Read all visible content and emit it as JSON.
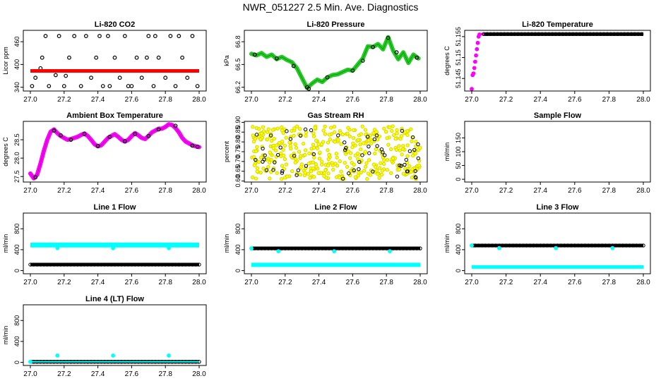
{
  "page_title": "NWR_051227  2.5 Min. Ave. Diagnostics",
  "colors": {
    "black": "#000000",
    "red": "#ff0000",
    "green": "#22cc22",
    "magenta": "#ff00ff",
    "yellow": "#ffff00",
    "cyan": "#00ffff"
  },
  "chart_data": [
    {
      "id": "co2",
      "title": "Li-820 CO2",
      "type": "scatter",
      "ylabel": "Licor ppm",
      "xlim": [
        27.0,
        28.0
      ],
      "xticks": [
        27.0,
        27.2,
        27.4,
        27.6,
        27.8,
        28.0
      ],
      "ylim": [
        330,
        490
      ],
      "yticks": [
        340,
        400,
        460
      ],
      "series": [
        {
          "name": "black",
          "color": "black",
          "mode": "scatter",
          "x": [
            27.01,
            27.03,
            27.07,
            27.09,
            27.15,
            27.17,
            27.2,
            27.23,
            27.3,
            27.33,
            27.36,
            27.39,
            27.43,
            27.46,
            27.5,
            27.53,
            27.56,
            27.6,
            27.63,
            27.66,
            27.7,
            27.73,
            27.76,
            27.8,
            27.83,
            27.86,
            27.9,
            27.93,
            27.96,
            27.99,
            27.11,
            27.26,
            27.41,
            27.58,
            27.74,
            27.88,
            27.06,
            27.21,
            27.47,
            27.69
          ],
          "y": [
            343,
            365,
            418,
            475,
            372,
            475,
            343,
            418,
            343,
            475,
            365,
            418,
            343,
            475,
            418,
            365,
            475,
            343,
            418,
            365,
            475,
            343,
            418,
            365,
            475,
            343,
            418,
            365,
            475,
            343,
            343,
            475,
            475,
            343,
            475,
            475,
            390,
            370,
            343,
            418
          ]
        },
        {
          "name": "red",
          "color": "red",
          "mode": "band",
          "x": [
            27.0,
            28.0
          ],
          "y": [
            383,
            383
          ],
          "width": 5
        }
      ]
    },
    {
      "id": "pressure",
      "title": "Li-820 Pressure",
      "type": "line",
      "ylabel": "kPa",
      "xlim": [
        27.0,
        28.0
      ],
      "xticks": [
        27.0,
        27.2,
        27.4,
        27.6,
        27.8,
        28.0
      ],
      "ylim": [
        66.15,
        66.95
      ],
      "yticks": [
        66.2,
        66.5,
        66.8
      ],
      "ytick_labels": [
        "66.2",
        "66.5",
        "66.8"
      ],
      "series": [
        {
          "name": "green",
          "color": "green",
          "mode": "thickline",
          "x": [
            27.0,
            27.03,
            27.06,
            27.09,
            27.12,
            27.15,
            27.18,
            27.21,
            27.24,
            27.27,
            27.3,
            27.33,
            27.36,
            27.39,
            27.42,
            27.45,
            27.48,
            27.51,
            27.54,
            27.57,
            27.6,
            27.63,
            27.66,
            27.69,
            27.72,
            27.75,
            27.78,
            27.81,
            27.84,
            27.87,
            27.9,
            27.93,
            27.96,
            27.99
          ],
          "y": [
            66.64,
            66.62,
            66.65,
            66.6,
            66.63,
            66.57,
            66.6,
            66.56,
            66.53,
            66.45,
            66.32,
            66.19,
            66.25,
            66.3,
            66.27,
            66.33,
            66.36,
            66.37,
            66.4,
            66.43,
            66.42,
            66.5,
            66.58,
            66.74,
            66.73,
            66.77,
            66.7,
            66.86,
            66.68,
            66.57,
            66.66,
            66.52,
            66.63,
            66.58
          ]
        },
        {
          "name": "black",
          "color": "black",
          "mode": "scatter",
          "x": [
            27.02,
            27.15,
            27.25,
            27.33,
            27.34,
            27.45,
            27.6,
            27.66,
            27.72,
            27.81,
            27.86,
            27.98
          ],
          "y": [
            66.63,
            66.58,
            66.48,
            66.2,
            66.18,
            66.33,
            66.42,
            66.55,
            66.73,
            66.85,
            66.66,
            66.59
          ]
        }
      ]
    },
    {
      "id": "licor_temp",
      "title": "Li-820 Temperature",
      "type": "scatter",
      "ylabel": "degrees C",
      "xlim": [
        27.0,
        28.0
      ],
      "xticks": [
        27.0,
        27.2,
        27.4,
        27.6,
        27.8,
        28.0
      ],
      "ylim": [
        51.142,
        51.1565
      ],
      "yticks": [
        51.145,
        51.15,
        51.155
      ],
      "ytick_labels": [
        "51.145",
        "51.15",
        "51.155"
      ],
      "series": [
        {
          "name": "magenta",
          "color": "magenta",
          "mode": "scatter",
          "x": [
            27.0,
            27.005,
            27.01,
            27.015,
            27.02,
            27.025,
            27.03,
            27.035,
            27.04,
            27.045
          ],
          "y": [
            51.1425,
            51.1458,
            51.1462,
            51.1475,
            51.149,
            51.1505,
            51.152,
            51.1535,
            51.155,
            51.1555
          ]
        },
        {
          "name": "magenta_top",
          "color": "magenta",
          "mode": "band",
          "x": [
            27.04,
            27.07
          ],
          "y": [
            51.1556,
            51.1556
          ],
          "width": 3
        },
        {
          "name": "black",
          "color": "black",
          "mode": "band",
          "x": [
            27.07,
            28.0
          ],
          "y": [
            51.1556,
            51.1556
          ],
          "width": 5
        }
      ]
    },
    {
      "id": "box_temp",
      "title": "Ambient Box Temperature",
      "type": "line",
      "ylabel": "degrees C",
      "xlim": [
        27.0,
        28.0
      ],
      "xticks": [
        27.0,
        27.2,
        27.4,
        27.6,
        27.8,
        28.0
      ],
      "ylim": [
        27.35,
        29.0
      ],
      "yticks": [
        27.5,
        28.0,
        28.5
      ],
      "ytick_labels": [
        "27.5",
        "28.0",
        "28.5"
      ],
      "series": [
        {
          "name": "magenta",
          "color": "magenta",
          "mode": "thickline",
          "x": [
            27.0,
            27.02,
            27.04,
            27.06,
            27.08,
            27.1,
            27.12,
            27.14,
            27.16,
            27.18,
            27.2,
            27.22,
            27.24,
            27.26,
            27.28,
            27.3,
            27.32,
            27.34,
            27.36,
            27.38,
            27.4,
            27.42,
            27.44,
            27.46,
            27.48,
            27.5,
            27.52,
            27.54,
            27.56,
            27.58,
            27.6,
            27.62,
            27.64,
            27.66,
            27.68,
            27.7,
            27.72,
            27.74,
            27.76,
            27.78,
            27.8,
            27.82,
            27.84,
            27.86,
            27.88,
            27.9,
            27.92,
            27.94,
            27.96,
            27.98,
            28.0
          ],
          "y": [
            27.58,
            27.45,
            27.55,
            27.85,
            28.2,
            28.5,
            28.72,
            28.78,
            28.68,
            28.6,
            28.55,
            28.5,
            28.52,
            28.55,
            28.58,
            28.63,
            28.67,
            28.6,
            28.5,
            28.38,
            28.32,
            28.35,
            28.45,
            28.55,
            28.6,
            28.65,
            28.58,
            28.5,
            28.45,
            28.5,
            28.6,
            28.68,
            28.62,
            28.55,
            28.52,
            28.6,
            28.7,
            28.75,
            28.8,
            28.8,
            28.85,
            28.92,
            28.9,
            28.82,
            28.7,
            28.55,
            28.45,
            28.4,
            28.35,
            28.32,
            28.3
          ]
        },
        {
          "name": "black",
          "color": "black",
          "mode": "scatter",
          "x": [
            27.03,
            27.14,
            27.18,
            27.24,
            27.32,
            27.4,
            27.47,
            27.56,
            27.62,
            27.7,
            27.76,
            27.86,
            27.96,
            27.99
          ],
          "y": [
            27.48,
            28.75,
            28.62,
            28.5,
            28.66,
            28.33,
            28.58,
            28.46,
            28.66,
            28.6,
            28.78,
            28.88,
            28.34,
            28.31
          ]
        }
      ]
    },
    {
      "id": "rh",
      "title": "Gas Stream RH",
      "type": "scatter",
      "ylabel": "percent",
      "xlim": [
        27.0,
        28.0
      ],
      "xticks": [
        27.0,
        27.2,
        27.4,
        27.6,
        27.8,
        28.0
      ],
      "ylim": [
        0.595,
        0.905
      ],
      "yticks": [
        0.6,
        0.65,
        0.7,
        0.75,
        0.8,
        0.85,
        0.9
      ],
      "ytick_labels": [
        "0.60",
        "0.65",
        "0.70",
        "0.75",
        "0.80",
        "0.85",
        "0.90"
      ],
      "series": [
        {
          "name": "yellow",
          "color": "yellow",
          "mode": "noise",
          "n": 420,
          "seed": 7,
          "xr": [
            27.0,
            28.0
          ],
          "yr": [
            0.61,
            0.88
          ]
        },
        {
          "name": "black",
          "color": "black",
          "mode": "noise",
          "n": 60,
          "seed": 13,
          "xr": [
            27.02,
            27.99
          ],
          "yr": [
            0.61,
            0.87
          ]
        }
      ]
    },
    {
      "id": "sample_flow",
      "title": "Sample Flow",
      "type": "empty",
      "ylabel": "ml/min",
      "xlim": [
        27.0,
        28.0
      ],
      "xticks": [
        27.0,
        27.2,
        27.4,
        27.6,
        27.8,
        28.0
      ],
      "ylim": [
        -10,
        210
      ],
      "yticks": [
        0,
        50,
        100,
        150
      ],
      "series": []
    },
    {
      "id": "line1",
      "title": "Line 1 Flow",
      "type": "scatter",
      "ylabel": "ml/min",
      "xlim": [
        27.0,
        28.0
      ],
      "xticks": [
        27.0,
        27.2,
        27.4,
        27.6,
        27.8,
        28.0
      ],
      "ylim": [
        -60,
        1100
      ],
      "yticks": [
        0,
        400,
        800
      ],
      "series": [
        {
          "name": "cyan",
          "color": "cyan",
          "mode": "band",
          "x": [
            27.0,
            28.0
          ],
          "y": [
            490,
            490
          ],
          "width": 7
        },
        {
          "name": "cyan_points",
          "color": "cyan",
          "mode": "scatter",
          "x": [
            27.16,
            27.49,
            27.82
          ],
          "y": [
            430,
            430,
            430
          ]
        },
        {
          "name": "black",
          "color": "black",
          "mode": "band",
          "x": [
            27.0,
            28.0
          ],
          "y": [
            115,
            115
          ],
          "width": 5
        }
      ]
    },
    {
      "id": "line2",
      "title": "Line 2 Flow",
      "type": "scatter",
      "ylabel": "ml/min",
      "xlim": [
        27.0,
        28.0
      ],
      "xticks": [
        27.0,
        27.2,
        27.4,
        27.6,
        27.8,
        28.0
      ],
      "ylim": [
        -60,
        1100
      ],
      "yticks": [
        0,
        400,
        800
      ],
      "series": [
        {
          "name": "black",
          "color": "black",
          "mode": "band",
          "x": [
            27.0,
            28.0
          ],
          "y": [
            425,
            425
          ],
          "width": 5
        },
        {
          "name": "cyan_points",
          "color": "cyan",
          "mode": "scatter",
          "x": [
            27.0,
            27.16,
            27.49,
            27.82
          ],
          "y": [
            425,
            370,
            370,
            370
          ]
        },
        {
          "name": "cyan",
          "color": "cyan",
          "mode": "band",
          "x": [
            27.0,
            28.0
          ],
          "y": [
            110,
            110
          ],
          "width": 6
        }
      ]
    },
    {
      "id": "line3",
      "title": "Line 3 Flow",
      "type": "scatter",
      "ylabel": "ml/min",
      "xlim": [
        27.0,
        28.0
      ],
      "xticks": [
        27.0,
        27.2,
        27.4,
        27.6,
        27.8,
        28.0
      ],
      "ylim": [
        -60,
        1100
      ],
      "yticks": [
        0,
        400,
        800
      ],
      "series": [
        {
          "name": "black",
          "color": "black",
          "mode": "band",
          "x": [
            27.0,
            28.0
          ],
          "y": [
            480,
            480
          ],
          "width": 5
        },
        {
          "name": "cyan_points",
          "color": "cyan",
          "mode": "scatter",
          "x": [
            27.0,
            27.16,
            27.49,
            27.82
          ],
          "y": [
            480,
            430,
            430,
            430
          ]
        },
        {
          "name": "cyan",
          "color": "cyan",
          "mode": "band",
          "x": [
            27.0,
            28.0
          ],
          "y": [
            70,
            70
          ],
          "width": 5
        }
      ]
    },
    {
      "id": "line4",
      "title": "Line 4 (LT) Flow",
      "type": "scatter",
      "ylabel": "ml/min",
      "xlim": [
        27.0,
        28.0
      ],
      "xticks": [
        27.0,
        27.2,
        27.4,
        27.6,
        27.8,
        28.0
      ],
      "ylim": [
        -60,
        1100
      ],
      "yticks": [
        0,
        400,
        800
      ],
      "series": [
        {
          "name": "black",
          "color": "black",
          "mode": "band",
          "x": [
            27.0,
            28.0
          ],
          "y": [
            10,
            10
          ],
          "width": 5
        },
        {
          "name": "cyan_line",
          "color": "cyan",
          "mode": "band",
          "x": [
            27.0,
            28.0
          ],
          "y": [
            10,
            10
          ],
          "width": 2
        },
        {
          "name": "cyan_points",
          "color": "cyan",
          "mode": "scatter",
          "x": [
            27.0,
            27.16,
            27.49,
            27.82
          ],
          "y": [
            10,
            130,
            130,
            130
          ]
        }
      ]
    }
  ]
}
